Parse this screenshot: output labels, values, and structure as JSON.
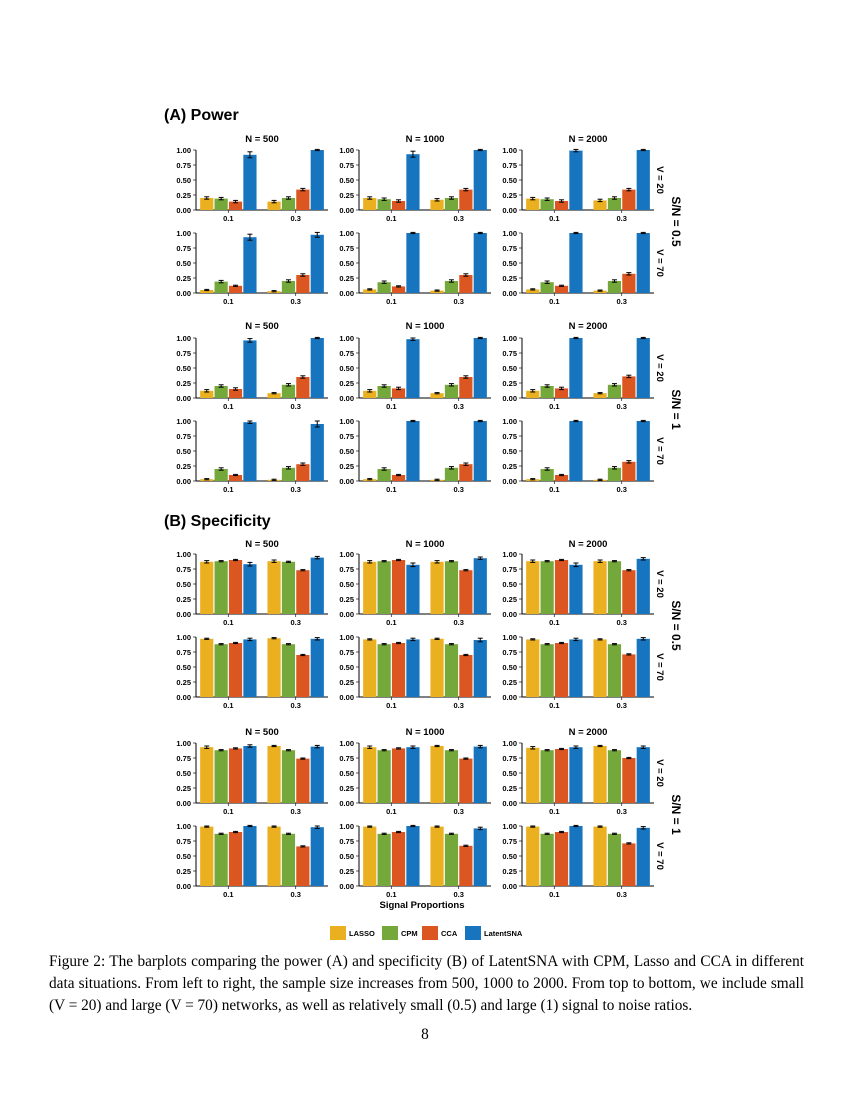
{
  "colors": {
    "LASSO": "#EBB020",
    "CPM": "#75A83A",
    "CCA": "#DC5621",
    "LatentSNA": "#1775C0"
  },
  "chart_data": {
    "type": "bar",
    "sections": [
      {
        "title": "(A) Power",
        "metric": "power"
      },
      {
        "title": "(B) Specificity",
        "metric": "specificity"
      }
    ],
    "columns": [
      "N = 500",
      "N = 1000",
      "N = 2000"
    ],
    "row_labels": [
      "V = 20",
      "V = 70"
    ],
    "group_labels": [
      "S/N = 0.5",
      "S/N = 1"
    ],
    "categories": [
      "0.1",
      "0.3"
    ],
    "y_ticks": [
      "1.00",
      "0.75",
      "0.50",
      "0.25",
      "0.00"
    ],
    "ylim": [
      0,
      1
    ],
    "xlabel": "Signal Proportions",
    "legend": [
      "LASSO",
      "CPM",
      "CCA",
      "LatentSNA"
    ],
    "series_order": [
      "LASSO",
      "CPM",
      "CCA",
      "LatentSNA"
    ],
    "power": [
      [
        [
          {
            "values": [
              [
                0.2,
                0.19,
                0.14,
                0.92
              ],
              [
                0.14,
                0.2,
                0.34,
                1.0
              ]
            ],
            "errors": [
              [
                0.02,
                0.02,
                0.02,
                0.05
              ],
              [
                0.02,
                0.02,
                0.02,
                0.01
              ]
            ]
          },
          {
            "values": [
              [
                0.2,
                0.18,
                0.15,
                0.93
              ],
              [
                0.17,
                0.2,
                0.34,
                1.0
              ]
            ],
            "errors": [
              [
                0.02,
                0.02,
                0.02,
                0.05
              ],
              [
                0.02,
                0.02,
                0.02,
                0.01
              ]
            ]
          },
          {
            "values": [
              [
                0.19,
                0.18,
                0.15,
                0.99
              ],
              [
                0.16,
                0.2,
                0.34,
                1.0
              ]
            ],
            "errors": [
              [
                0.02,
                0.02,
                0.02,
                0.02
              ],
              [
                0.02,
                0.02,
                0.02,
                0.01
              ]
            ]
          }
        ],
        [
          {
            "values": [
              [
                0.05,
                0.19,
                0.12,
                0.93
              ],
              [
                0.03,
                0.2,
                0.3,
                0.97
              ]
            ],
            "errors": [
              [
                0.01,
                0.02,
                0.01,
                0.05
              ],
              [
                0.01,
                0.02,
                0.02,
                0.04
              ]
            ]
          },
          {
            "values": [
              [
                0.06,
                0.18,
                0.11,
                1.0
              ],
              [
                0.04,
                0.2,
                0.3,
                1.0
              ]
            ],
            "errors": [
              [
                0.01,
                0.02,
                0.01,
                0.01
              ],
              [
                0.01,
                0.02,
                0.02,
                0.01
              ]
            ]
          },
          {
            "values": [
              [
                0.06,
                0.18,
                0.12,
                1.0
              ],
              [
                0.04,
                0.2,
                0.32,
                1.0
              ]
            ],
            "errors": [
              [
                0.01,
                0.02,
                0.01,
                0.01
              ],
              [
                0.01,
                0.02,
                0.02,
                0.01
              ]
            ]
          }
        ]
      ],
      [
        [
          {
            "values": [
              [
                0.12,
                0.2,
                0.15,
                0.96
              ],
              [
                0.08,
                0.22,
                0.35,
                1.0
              ]
            ],
            "errors": [
              [
                0.02,
                0.02,
                0.02,
                0.03
              ],
              [
                0.01,
                0.02,
                0.02,
                0.01
              ]
            ]
          },
          {
            "values": [
              [
                0.12,
                0.2,
                0.16,
                0.98
              ],
              [
                0.08,
                0.22,
                0.35,
                1.0
              ]
            ],
            "errors": [
              [
                0.02,
                0.02,
                0.02,
                0.02
              ],
              [
                0.01,
                0.02,
                0.02,
                0.01
              ]
            ]
          },
          {
            "values": [
              [
                0.12,
                0.2,
                0.16,
                1.0
              ],
              [
                0.08,
                0.22,
                0.36,
                1.0
              ]
            ],
            "errors": [
              [
                0.02,
                0.02,
                0.02,
                0.01
              ],
              [
                0.01,
                0.02,
                0.02,
                0.01
              ]
            ]
          }
        ],
        [
          {
            "values": [
              [
                0.03,
                0.2,
                0.1,
                0.98
              ],
              [
                0.02,
                0.22,
                0.28,
                0.95
              ]
            ],
            "errors": [
              [
                0.01,
                0.02,
                0.01,
                0.02
              ],
              [
                0.01,
                0.02,
                0.02,
                0.05
              ]
            ]
          },
          {
            "values": [
              [
                0.03,
                0.2,
                0.1,
                1.0
              ],
              [
                0.02,
                0.22,
                0.28,
                1.0
              ]
            ],
            "errors": [
              [
                0.01,
                0.02,
                0.01,
                0.01
              ],
              [
                0.01,
                0.02,
                0.02,
                0.01
              ]
            ]
          },
          {
            "values": [
              [
                0.03,
                0.2,
                0.1,
                1.0
              ],
              [
                0.02,
                0.22,
                0.32,
                1.0
              ]
            ],
            "errors": [
              [
                0.01,
                0.02,
                0.01,
                0.01
              ],
              [
                0.01,
                0.02,
                0.02,
                0.01
              ]
            ]
          }
        ]
      ]
    ],
    "specificity": [
      [
        [
          {
            "values": [
              [
                0.87,
                0.88,
                0.9,
                0.83
              ],
              [
                0.88,
                0.87,
                0.73,
                0.94
              ]
            ],
            "errors": [
              [
                0.02,
                0.01,
                0.01,
                0.03
              ],
              [
                0.02,
                0.01,
                0.01,
                0.02
              ]
            ]
          },
          {
            "values": [
              [
                0.87,
                0.88,
                0.9,
                0.82
              ],
              [
                0.87,
                0.88,
                0.73,
                0.93
              ]
            ],
            "errors": [
              [
                0.02,
                0.01,
                0.01,
                0.03
              ],
              [
                0.02,
                0.01,
                0.01,
                0.02
              ]
            ]
          },
          {
            "values": [
              [
                0.88,
                0.88,
                0.9,
                0.82
              ],
              [
                0.88,
                0.88,
                0.73,
                0.92
              ]
            ],
            "errors": [
              [
                0.02,
                0.01,
                0.01,
                0.03
              ],
              [
                0.02,
                0.01,
                0.01,
                0.02
              ]
            ]
          }
        ],
        [
          {
            "values": [
              [
                0.97,
                0.88,
                0.9,
                0.96
              ],
              [
                0.98,
                0.88,
                0.7,
                0.97
              ]
            ],
            "errors": [
              [
                0.01,
                0.01,
                0.01,
                0.02
              ],
              [
                0.01,
                0.01,
                0.01,
                0.02
              ]
            ]
          },
          {
            "values": [
              [
                0.96,
                0.88,
                0.9,
                0.96
              ],
              [
                0.97,
                0.88,
                0.7,
                0.95
              ]
            ],
            "errors": [
              [
                0.01,
                0.01,
                0.01,
                0.02
              ],
              [
                0.01,
                0.01,
                0.01,
                0.03
              ]
            ]
          },
          {
            "values": [
              [
                0.96,
                0.88,
                0.9,
                0.96
              ],
              [
                0.96,
                0.88,
                0.71,
                0.97
              ]
            ],
            "errors": [
              [
                0.01,
                0.01,
                0.01,
                0.02
              ],
              [
                0.01,
                0.01,
                0.01,
                0.02
              ]
            ]
          }
        ]
      ],
      [
        [
          {
            "values": [
              [
                0.93,
                0.88,
                0.91,
                0.95
              ],
              [
                0.95,
                0.88,
                0.74,
                0.94
              ]
            ],
            "errors": [
              [
                0.02,
                0.01,
                0.01,
                0.02
              ],
              [
                0.01,
                0.01,
                0.01,
                0.02
              ]
            ]
          },
          {
            "values": [
              [
                0.93,
                0.88,
                0.91,
                0.93
              ],
              [
                0.95,
                0.88,
                0.74,
                0.94
              ]
            ],
            "errors": [
              [
                0.02,
                0.01,
                0.01,
                0.02
              ],
              [
                0.01,
                0.01,
                0.01,
                0.02
              ]
            ]
          },
          {
            "values": [
              [
                0.92,
                0.88,
                0.9,
                0.93
              ],
              [
                0.95,
                0.88,
                0.75,
                0.93
              ]
            ],
            "errors": [
              [
                0.02,
                0.01,
                0.01,
                0.02
              ],
              [
                0.01,
                0.01,
                0.01,
                0.02
              ]
            ]
          }
        ],
        [
          {
            "values": [
              [
                0.99,
                0.87,
                0.9,
                1.0
              ],
              [
                0.99,
                0.87,
                0.66,
                0.98
              ]
            ],
            "errors": [
              [
                0.01,
                0.01,
                0.01,
                0.01
              ],
              [
                0.01,
                0.01,
                0.01,
                0.02
              ]
            ]
          },
          {
            "values": [
              [
                0.99,
                0.87,
                0.9,
                1.0
              ],
              [
                0.99,
                0.87,
                0.67,
                0.96
              ]
            ],
            "errors": [
              [
                0.01,
                0.01,
                0.01,
                0.01
              ],
              [
                0.01,
                0.01,
                0.01,
                0.02
              ]
            ]
          },
          {
            "values": [
              [
                0.99,
                0.87,
                0.9,
                1.0
              ],
              [
                0.99,
                0.87,
                0.71,
                0.97
              ]
            ],
            "errors": [
              [
                0.01,
                0.01,
                0.01,
                0.01
              ],
              [
                0.01,
                0.01,
                0.01,
                0.02
              ]
            ]
          }
        ]
      ]
    ]
  },
  "caption": "Figure 2: The barplots comparing the power (A) and specificity (B) of LatentSNA with CPM, Lasso and CCA in different data situations. From left to right, the sample size increases from 500, 1000 to 2000. From top to bottom, we include small (V = 20) and large (V = 70) networks, as well as relatively small (0.5) and large (1) signal to noise ratios.",
  "page_number": "8"
}
